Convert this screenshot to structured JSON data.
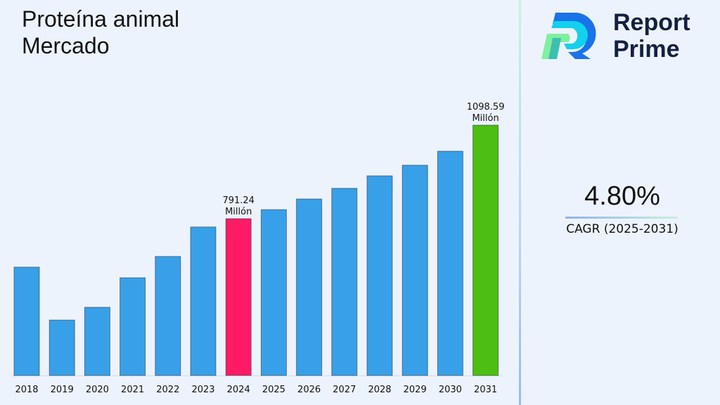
{
  "header": {
    "title_line1": "Proteína animal",
    "title_line2": "Mercado"
  },
  "brand": {
    "line1": "Report",
    "line2": "Prime"
  },
  "cagr": {
    "value": "4.80%",
    "label": "CAGR (2025-2031)"
  },
  "colors": {
    "default_bar": "#38a0e8",
    "highlight_2024": "#ff1a66",
    "highlight_2031": "#4cbf10",
    "background": "#edf3fd"
  },
  "chart_data": {
    "type": "bar",
    "title": "Proteína animal Mercado",
    "categories": [
      "2018",
      "2019",
      "2020",
      "2021",
      "2022",
      "2023",
      "2024",
      "2025",
      "2026",
      "2027",
      "2028",
      "2029",
      "2030",
      "2031"
    ],
    "values": [
      632,
      458,
      500,
      597,
      667,
      764,
      791.24,
      821,
      856,
      891,
      932,
      967,
      1013,
      1098.59
    ],
    "data_labels": {
      "2024": [
        "791.24",
        "Millón"
      ],
      "2031": [
        "1098.59",
        "Millón"
      ]
    },
    "xlabel": "",
    "ylabel": "",
    "grid": false,
    "legend": "none"
  }
}
